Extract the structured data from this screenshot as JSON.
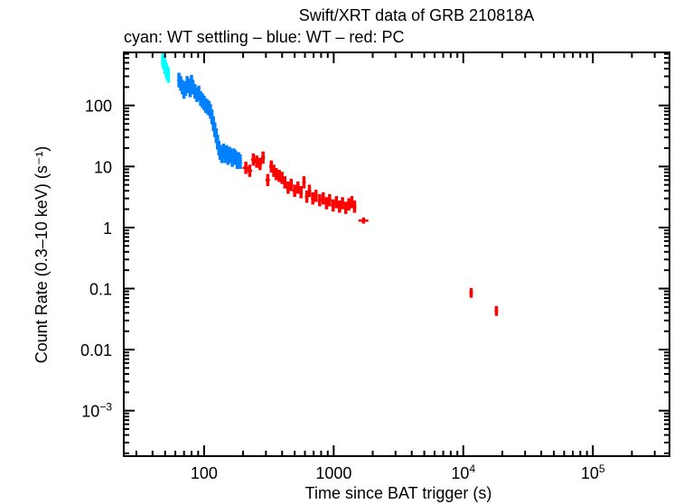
{
  "chart_data": {
    "type": "scatter",
    "title": "Swift/XRT data of GRB 210818A",
    "subtitle": "cyan: WT settling – blue: WT – red: PC",
    "xlabel": "Time since BAT trigger (s)",
    "ylabel": "Count Rate (0.3–10 keV) (s⁻¹)",
    "xscale": "log",
    "yscale": "log",
    "xlim": [
      24,
      390000
    ],
    "ylim": [
      0.00018,
      740
    ],
    "grid": false,
    "legend": "none (colors described in subtitle)",
    "x_ticks": [
      {
        "value": 100,
        "label": "100"
      },
      {
        "value": 1000,
        "label": "1000"
      },
      {
        "value": 10000,
        "label": "10",
        "exp": "4"
      },
      {
        "value": 100000,
        "label": "10",
        "exp": "5"
      }
    ],
    "y_ticks": [
      {
        "value": 100,
        "label": "100"
      },
      {
        "value": 10,
        "label": "10"
      },
      {
        "value": 1,
        "label": "1"
      },
      {
        "value": 0.1,
        "label": "0.1"
      },
      {
        "value": 0.01,
        "label": "0.01"
      },
      {
        "value": 0.001,
        "label": "10",
        "exp": "−3"
      }
    ],
    "series": [
      {
        "name": "WT settling",
        "color": "#00ffff",
        "points": [
          {
            "x": 48,
            "y": 560,
            "xerr": 0.5,
            "yerr": 0.12
          },
          {
            "x": 49,
            "y": 500,
            "xerr": 0.5,
            "yerr": 0.12
          },
          {
            "x": 50,
            "y": 430,
            "xerr": 0.5,
            "yerr": 0.12
          },
          {
            "x": 51,
            "y": 380,
            "xerr": 0.5,
            "yerr": 0.12
          },
          {
            "x": 52,
            "y": 340,
            "xerr": 0.5,
            "yerr": 0.12
          },
          {
            "x": 53,
            "y": 310,
            "xerr": 0.5,
            "yerr": 0.12
          }
        ]
      },
      {
        "name": "WT",
        "color": "#0080ff",
        "points": [
          {
            "x": 64,
            "y": 260,
            "xerr": 1,
            "yerr": 0.12
          },
          {
            "x": 66,
            "y": 230,
            "xerr": 1,
            "yerr": 0.12
          },
          {
            "x": 68,
            "y": 200,
            "xerr": 1,
            "yerr": 0.12
          },
          {
            "x": 70,
            "y": 170,
            "xerr": 1,
            "yerr": 0.12
          },
          {
            "x": 72,
            "y": 190,
            "xerr": 1,
            "yerr": 0.12
          },
          {
            "x": 74,
            "y": 230,
            "xerr": 1,
            "yerr": 0.12
          },
          {
            "x": 76,
            "y": 210,
            "xerr": 1,
            "yerr": 0.12
          },
          {
            "x": 78,
            "y": 180,
            "xerr": 1,
            "yerr": 0.12
          },
          {
            "x": 80,
            "y": 240,
            "xerr": 1,
            "yerr": 0.12
          },
          {
            "x": 82,
            "y": 200,
            "xerr": 1,
            "yerr": 0.12
          },
          {
            "x": 85,
            "y": 170,
            "xerr": 1,
            "yerr": 0.12
          },
          {
            "x": 88,
            "y": 150,
            "xerr": 1,
            "yerr": 0.12
          },
          {
            "x": 91,
            "y": 160,
            "xerr": 1,
            "yerr": 0.12
          },
          {
            "x": 94,
            "y": 130,
            "xerr": 1,
            "yerr": 0.12
          },
          {
            "x": 97,
            "y": 120,
            "xerr": 1,
            "yerr": 0.12
          },
          {
            "x": 100,
            "y": 110,
            "xerr": 1,
            "yerr": 0.12
          },
          {
            "x": 103,
            "y": 100,
            "xerr": 1,
            "yerr": 0.12
          },
          {
            "x": 106,
            "y": 95,
            "xerr": 1,
            "yerr": 0.12
          },
          {
            "x": 109,
            "y": 90,
            "xerr": 1,
            "yerr": 0.12
          },
          {
            "x": 112,
            "y": 80,
            "xerr": 1,
            "yerr": 0.12
          },
          {
            "x": 115,
            "y": 65,
            "xerr": 1,
            "yerr": 0.12
          },
          {
            "x": 118,
            "y": 50,
            "xerr": 1,
            "yerr": 0.12
          },
          {
            "x": 121,
            "y": 40,
            "xerr": 1,
            "yerr": 0.12
          },
          {
            "x": 124,
            "y": 32,
            "xerr": 1,
            "yerr": 0.12
          },
          {
            "x": 127,
            "y": 25,
            "xerr": 1,
            "yerr": 0.12
          },
          {
            "x": 130,
            "y": 20,
            "xerr": 1,
            "yerr": 0.12
          },
          {
            "x": 133,
            "y": 17,
            "xerr": 1,
            "yerr": 0.12
          },
          {
            "x": 137,
            "y": 15,
            "xerr": 1.5,
            "yerr": 0.12
          },
          {
            "x": 141,
            "y": 18,
            "xerr": 1.5,
            "yerr": 0.12
          },
          {
            "x": 145,
            "y": 15,
            "xerr": 1.5,
            "yerr": 0.12
          },
          {
            "x": 149,
            "y": 17,
            "xerr": 1.5,
            "yerr": 0.12
          },
          {
            "x": 153,
            "y": 14,
            "xerr": 1.5,
            "yerr": 0.12
          },
          {
            "x": 157,
            "y": 16,
            "xerr": 1.5,
            "yerr": 0.12
          },
          {
            "x": 161,
            "y": 15,
            "xerr": 1.5,
            "yerr": 0.12
          },
          {
            "x": 165,
            "y": 13,
            "xerr": 1.5,
            "yerr": 0.12
          },
          {
            "x": 170,
            "y": 15,
            "xerr": 1.5,
            "yerr": 0.12
          },
          {
            "x": 175,
            "y": 14,
            "xerr": 1.5,
            "yerr": 0.12
          },
          {
            "x": 180,
            "y": 12,
            "xerr": 1.5,
            "yerr": 0.12
          },
          {
            "x": 185,
            "y": 13,
            "xerr": 1.5,
            "yerr": 0.12
          },
          {
            "x": 190,
            "y": 12,
            "xerr": 1.5,
            "yerr": 0.12
          }
        ]
      },
      {
        "name": "PC",
        "color": "#ff0000",
        "points": [
          {
            "x": 210,
            "y": 9.5,
            "xerr": 12,
            "yerr": 0.1
          },
          {
            "x": 225,
            "y": 8.5,
            "xerr": 10,
            "yerr": 0.1
          },
          {
            "x": 240,
            "y": 13,
            "xerr": 10,
            "yerr": 0.1
          },
          {
            "x": 255,
            "y": 12,
            "xerr": 10,
            "yerr": 0.1
          },
          {
            "x": 270,
            "y": 11,
            "xerr": 10,
            "yerr": 0.1
          },
          {
            "x": 285,
            "y": 14,
            "xerr": 10,
            "yerr": 0.1
          },
          {
            "x": 310,
            "y": 6.0,
            "xerr": 12,
            "yerr": 0.1
          },
          {
            "x": 330,
            "y": 10,
            "xerr": 12,
            "yerr": 0.1
          },
          {
            "x": 345,
            "y": 8.5,
            "xerr": 12,
            "yerr": 0.1
          },
          {
            "x": 360,
            "y": 7.5,
            "xerr": 12,
            "yerr": 0.1
          },
          {
            "x": 380,
            "y": 7.0,
            "xerr": 14,
            "yerr": 0.1
          },
          {
            "x": 400,
            "y": 6.5,
            "xerr": 14,
            "yerr": 0.1
          },
          {
            "x": 420,
            "y": 5.5,
            "xerr": 14,
            "yerr": 0.1
          },
          {
            "x": 445,
            "y": 4.5,
            "xerr": 16,
            "yerr": 0.1
          },
          {
            "x": 470,
            "y": 5.0,
            "xerr": 16,
            "yerr": 0.1
          },
          {
            "x": 500,
            "y": 4.0,
            "xerr": 18,
            "yerr": 0.1
          },
          {
            "x": 530,
            "y": 4.5,
            "xerr": 18,
            "yerr": 0.1
          },
          {
            "x": 560,
            "y": 3.8,
            "xerr": 18,
            "yerr": 0.1
          },
          {
            "x": 590,
            "y": 5.5,
            "xerr": 18,
            "yerr": 0.1
          },
          {
            "x": 620,
            "y": 3.2,
            "xerr": 20,
            "yerr": 0.1
          },
          {
            "x": 650,
            "y": 4.0,
            "xerr": 20,
            "yerr": 0.1
          },
          {
            "x": 690,
            "y": 3.0,
            "xerr": 22,
            "yerr": 0.1
          },
          {
            "x": 730,
            "y": 3.3,
            "xerr": 22,
            "yerr": 0.1
          },
          {
            "x": 780,
            "y": 2.8,
            "xerr": 25,
            "yerr": 0.1
          },
          {
            "x": 830,
            "y": 3.0,
            "xerr": 25,
            "yerr": 0.1
          },
          {
            "x": 880,
            "y": 2.5,
            "xerr": 28,
            "yerr": 0.1
          },
          {
            "x": 930,
            "y": 2.8,
            "xerr": 28,
            "yerr": 0.1
          },
          {
            "x": 990,
            "y": 2.3,
            "xerr": 30,
            "yerr": 0.1
          },
          {
            "x": 1050,
            "y": 2.6,
            "xerr": 30,
            "yerr": 0.1
          },
          {
            "x": 1110,
            "y": 2.2,
            "xerr": 32,
            "yerr": 0.1
          },
          {
            "x": 1170,
            "y": 2.5,
            "xerr": 32,
            "yerr": 0.1
          },
          {
            "x": 1240,
            "y": 2.1,
            "xerr": 34,
            "yerr": 0.1
          },
          {
            "x": 1310,
            "y": 2.4,
            "xerr": 34,
            "yerr": 0.1
          },
          {
            "x": 1380,
            "y": 2.6,
            "xerr": 34,
            "yerr": 0.1
          },
          {
            "x": 1450,
            "y": 2.2,
            "xerr": 36,
            "yerr": 0.1
          },
          {
            "x": 1700,
            "y": 1.3,
            "xerr": 150,
            "yerr": 0.05
          },
          {
            "x": 11500,
            "y": 0.085,
            "xerr": 300,
            "yerr": 0.08
          },
          {
            "x": 18000,
            "y": 0.043,
            "xerr": 400,
            "yerr": 0.08
          }
        ]
      }
    ]
  }
}
